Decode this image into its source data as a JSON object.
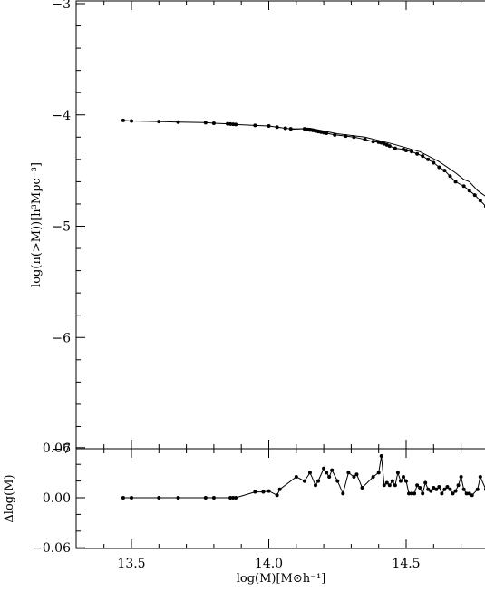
{
  "chart_data": [
    {
      "type": "line",
      "panel": "top",
      "xlabel": "",
      "ylabel": "log(n(>M))[h³Mpc⁻³]",
      "xlim": [
        13.34,
        14.8
      ],
      "ylim": [
        -7,
        -3
      ],
      "x_ticks": [
        13.5,
        14.0,
        14.5
      ],
      "y_ticks": [
        -7,
        -6,
        -5,
        -4,
        -3
      ],
      "y_tick_labels": [
        "−7",
        "−6",
        "−5",
        "−4",
        "−3"
      ],
      "grid": false,
      "series": [
        {
          "marker": "dot",
          "points": [
            [
              13.47,
              -4.05
            ],
            [
              13.5,
              -4.055
            ],
            [
              13.6,
              -4.06
            ],
            [
              13.67,
              -4.065
            ],
            [
              13.77,
              -4.07
            ],
            [
              13.8,
              -4.075
            ],
            [
              13.85,
              -4.08
            ],
            [
              13.86,
              -4.082
            ],
            [
              13.87,
              -4.085
            ],
            [
              13.88,
              -4.087
            ],
            [
              13.95,
              -4.095
            ],
            [
              14.0,
              -4.1
            ],
            [
              14.03,
              -4.11
            ],
            [
              14.06,
              -4.12
            ],
            [
              14.08,
              -4.125
            ],
            [
              14.13,
              -4.125
            ],
            [
              14.14,
              -4.13
            ],
            [
              14.15,
              -4.135
            ],
            [
              14.16,
              -4.14
            ],
            [
              14.17,
              -4.145
            ],
            [
              14.18,
              -4.15
            ],
            [
              14.19,
              -4.155
            ],
            [
              14.2,
              -4.16
            ],
            [
              14.21,
              -4.165
            ],
            [
              14.24,
              -4.18
            ],
            [
              14.28,
              -4.19
            ],
            [
              14.31,
              -4.2
            ],
            [
              14.35,
              -4.22
            ],
            [
              14.38,
              -4.24
            ],
            [
              14.4,
              -4.245
            ],
            [
              14.41,
              -4.25
            ],
            [
              14.42,
              -4.26
            ],
            [
              14.43,
              -4.27
            ],
            [
              14.44,
              -4.28
            ],
            [
              14.46,
              -4.3
            ],
            [
              14.49,
              -4.31
            ],
            [
              14.5,
              -4.32
            ],
            [
              14.52,
              -4.33
            ],
            [
              14.54,
              -4.35
            ],
            [
              14.56,
              -4.37
            ],
            [
              14.58,
              -4.4
            ],
            [
              14.6,
              -4.43
            ],
            [
              14.62,
              -4.47
            ],
            [
              14.64,
              -4.5
            ],
            [
              14.66,
              -4.55
            ],
            [
              14.68,
              -4.6
            ],
            [
              14.71,
              -4.64
            ],
            [
              14.73,
              -4.68
            ],
            [
              14.75,
              -4.72
            ],
            [
              14.77,
              -4.77
            ],
            [
              14.79,
              -4.82
            ],
            [
              14.8,
              -4.85
            ]
          ]
        },
        {
          "marker": "none",
          "points": [
            [
              14.08,
              -4.13
            ],
            [
              14.15,
              -4.12
            ],
            [
              14.25,
              -4.17
            ],
            [
              14.35,
              -4.2
            ],
            [
              14.45,
              -4.26
            ],
            [
              14.55,
              -4.33
            ],
            [
              14.62,
              -4.42
            ],
            [
              14.68,
              -4.52
            ],
            [
              14.71,
              -4.58
            ],
            [
              14.73,
              -4.6
            ],
            [
              14.76,
              -4.68
            ],
            [
              14.8,
              -4.75
            ]
          ]
        }
      ]
    },
    {
      "type": "line",
      "panel": "bottom",
      "xlabel": "log(M)[M⊙h⁻¹]",
      "ylabel": "Δlog(M)",
      "xlim": [
        13.34,
        14.8
      ],
      "ylim": [
        -0.065,
        0.065
      ],
      "x_ticks": [
        13.5,
        14.0,
        14.5
      ],
      "x_tick_labels": [
        "13.5",
        "14.0",
        "14.5"
      ],
      "y_ticks": [
        0.06,
        0.0,
        -0.06
      ],
      "y_tick_labels": [
        "0.06",
        "0.00",
        "−0.06"
      ],
      "grid": false,
      "series": [
        {
          "marker": "dot",
          "points": [
            [
              13.47,
              0.0
            ],
            [
              13.5,
              0.0
            ],
            [
              13.6,
              0.0
            ],
            [
              13.67,
              0.0
            ],
            [
              13.77,
              0.0
            ],
            [
              13.8,
              0.0
            ],
            [
              13.86,
              0.0
            ],
            [
              13.87,
              0.0
            ],
            [
              13.88,
              0.0
            ],
            [
              13.95,
              0.007
            ],
            [
              13.98,
              0.007
            ],
            [
              14.0,
              0.008
            ],
            [
              14.03,
              0.003
            ],
            [
              14.04,
              0.01
            ],
            [
              14.1,
              0.025
            ],
            [
              14.13,
              0.02
            ],
            [
              14.15,
              0.03
            ],
            [
              14.17,
              0.015
            ],
            [
              14.18,
              0.02
            ],
            [
              14.2,
              0.035
            ],
            [
              14.21,
              0.03
            ],
            [
              14.22,
              0.025
            ],
            [
              14.23,
              0.033
            ],
            [
              14.25,
              0.02
            ],
            [
              14.27,
              0.005
            ],
            [
              14.29,
              0.03
            ],
            [
              14.31,
              0.025
            ],
            [
              14.32,
              0.028
            ],
            [
              14.34,
              0.012
            ],
            [
              14.38,
              0.025
            ],
            [
              14.4,
              0.03
            ],
            [
              14.41,
              0.05
            ],
            [
              14.42,
              0.015
            ],
            [
              14.43,
              0.018
            ],
            [
              14.44,
              0.015
            ],
            [
              14.45,
              0.02
            ],
            [
              14.46,
              0.015
            ],
            [
              14.47,
              0.03
            ],
            [
              14.48,
              0.02
            ],
            [
              14.49,
              0.025
            ],
            [
              14.5,
              0.02
            ],
            [
              14.51,
              0.005
            ],
            [
              14.52,
              0.005
            ],
            [
              14.53,
              0.005
            ],
            [
              14.54,
              0.015
            ],
            [
              14.55,
              0.012
            ],
            [
              14.56,
              0.005
            ],
            [
              14.57,
              0.018
            ],
            [
              14.58,
              0.01
            ],
            [
              14.59,
              0.008
            ],
            [
              14.6,
              0.012
            ],
            [
              14.61,
              0.01
            ],
            [
              14.62,
              0.013
            ],
            [
              14.63,
              0.005
            ],
            [
              14.64,
              0.01
            ],
            [
              14.65,
              0.013
            ],
            [
              14.66,
              0.01
            ],
            [
              14.67,
              0.005
            ],
            [
              14.68,
              0.008
            ],
            [
              14.69,
              0.015
            ],
            [
              14.7,
              0.025
            ],
            [
              14.71,
              0.01
            ],
            [
              14.72,
              0.005
            ],
            [
              14.73,
              0.005
            ],
            [
              14.74,
              0.003
            ],
            [
              14.76,
              0.01
            ],
            [
              14.77,
              0.025
            ],
            [
              14.79,
              0.01
            ],
            [
              14.8,
              0.015
            ]
          ]
        }
      ]
    }
  ]
}
